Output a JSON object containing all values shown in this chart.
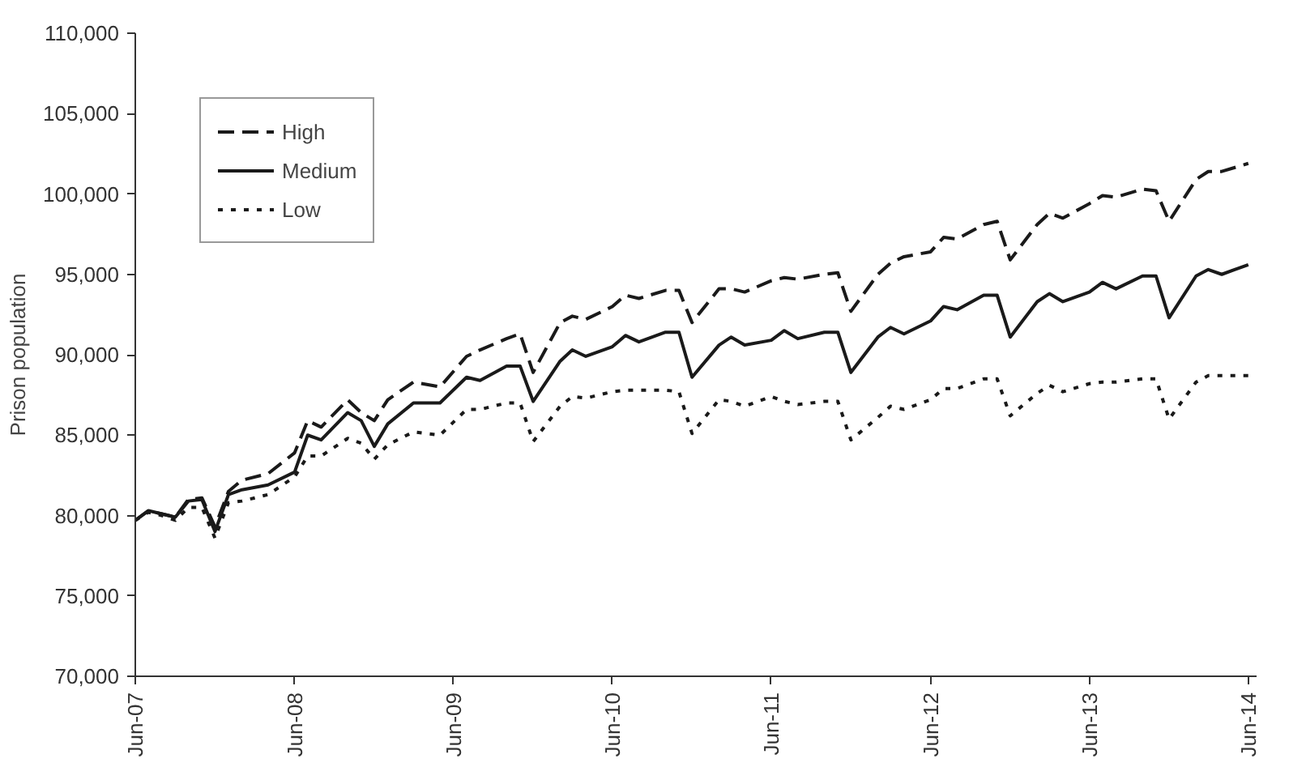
{
  "chart_data": {
    "type": "line",
    "ylabel": "Prison population",
    "x": [
      "2007-06",
      "2007-07",
      "2007-08",
      "2007-09",
      "2007-10",
      "2007-11",
      "2007-12",
      "2008-01",
      "2008-02",
      "2008-04",
      "2008-06",
      "2008-07",
      "2008-08",
      "2008-10",
      "2008-11",
      "2008-12",
      "2009-01",
      "2009-03",
      "2009-05",
      "2009-07",
      "2009-08",
      "2009-10",
      "2009-11",
      "2009-12",
      "2010-02",
      "2010-03",
      "2010-04",
      "2010-06",
      "2010-07",
      "2010-08",
      "2010-10",
      "2010-11",
      "2010-12",
      "2011-02",
      "2011-03",
      "2011-04",
      "2011-06",
      "2011-07",
      "2011-08",
      "2011-10",
      "2011-11",
      "2011-12",
      "2012-02",
      "2012-03",
      "2012-04",
      "2012-06",
      "2012-07",
      "2012-08",
      "2012-10",
      "2012-11",
      "2012-12",
      "2013-02",
      "2013-03",
      "2013-04",
      "2013-06",
      "2013-07",
      "2013-08",
      "2013-10",
      "2013-11",
      "2013-12",
      "2014-02",
      "2014-03",
      "2014-04",
      "2014-06"
    ],
    "series": [
      {
        "name": "High",
        "color": "#1a1a1a",
        "line_style": "dashed",
        "values": [
          79700,
          80300,
          80100,
          79900,
          81000,
          81100,
          79300,
          81500,
          82200,
          82600,
          83900,
          85900,
          85500,
          87200,
          86400,
          85900,
          87200,
          88300,
          88000,
          89900,
          90300,
          91000,
          91300,
          88900,
          92000,
          92400,
          92200,
          93000,
          93700,
          93500,
          94000,
          94000,
          92000,
          94100,
          94100,
          93900,
          94600,
          94800,
          94700,
          95000,
          95100,
          92700,
          95000,
          95700,
          96100,
          96400,
          97300,
          97200,
          98100,
          98300,
          95900,
          98100,
          98800,
          98500,
          99400,
          99900,
          99800,
          100300,
          100200,
          98300,
          100900,
          101400,
          101400,
          101900
        ]
      },
      {
        "name": "Medium",
        "color": "#1a1a1a",
        "line_style": "solid",
        "values": [
          79700,
          80300,
          80100,
          79900,
          80900,
          81000,
          79000,
          81300,
          81600,
          81900,
          82700,
          85000,
          84700,
          86400,
          85900,
          84300,
          85700,
          87000,
          87000,
          88600,
          88400,
          89300,
          89300,
          87100,
          89600,
          90300,
          89900,
          90500,
          91200,
          90800,
          91400,
          91400,
          88600,
          90600,
          91100,
          90600,
          90900,
          91500,
          91000,
          91400,
          91400,
          88900,
          91100,
          91700,
          91300,
          92100,
          93000,
          92800,
          93700,
          93700,
          91100,
          93300,
          93800,
          93300,
          93900,
          94500,
          94100,
          94900,
          94900,
          92300,
          94900,
          95300,
          95000,
          95600
        ]
      },
      {
        "name": "Low",
        "color": "#1a1a1a",
        "line_style": "dotted",
        "values": [
          79700,
          80200,
          80000,
          79700,
          80500,
          80500,
          78600,
          80800,
          80900,
          81300,
          82400,
          83700,
          83700,
          84800,
          84500,
          83500,
          84400,
          85200,
          85000,
          86600,
          86600,
          87000,
          87000,
          84600,
          86800,
          87400,
          87300,
          87700,
          87800,
          87800,
          87800,
          87700,
          85100,
          87200,
          87100,
          86800,
          87400,
          87100,
          86900,
          87100,
          87100,
          84700,
          86100,
          86800,
          86600,
          87200,
          87900,
          87900,
          88500,
          88500,
          86200,
          87600,
          88100,
          87700,
          88200,
          88300,
          88300,
          88500,
          88500,
          86000,
          88300,
          88700,
          88700,
          88700
        ]
      }
    ],
    "xlim": [
      "2007-06",
      "2014-06-20"
    ],
    "xticks": [
      {
        "value": "2007-06",
        "label": "Jun-07"
      },
      {
        "value": "2008-06",
        "label": "Jun-08"
      },
      {
        "value": "2009-06",
        "label": "Jun-09"
      },
      {
        "value": "2010-06",
        "label": "Jun-10"
      },
      {
        "value": "2011-06",
        "label": "Jun-11"
      },
      {
        "value": "2012-06",
        "label": "Jun-12"
      },
      {
        "value": "2013-06",
        "label": "Jun-13"
      },
      {
        "value": "2014-06",
        "label": "Jun-14"
      }
    ],
    "ylim": [
      70000,
      110000
    ],
    "yticks": [
      {
        "value": 70000,
        "label": "70,000"
      },
      {
        "value": 75000,
        "label": "75,000"
      },
      {
        "value": 80000,
        "label": "80,000"
      },
      {
        "value": 85000,
        "label": "85,000"
      },
      {
        "value": 90000,
        "label": "90,000"
      },
      {
        "value": 95000,
        "label": "95,000"
      },
      {
        "value": 100000,
        "label": "100,000"
      },
      {
        "value": 105000,
        "label": "105,000"
      },
      {
        "value": 110000,
        "label": "110,000"
      }
    ],
    "grid": false,
    "legend": "top left"
  }
}
